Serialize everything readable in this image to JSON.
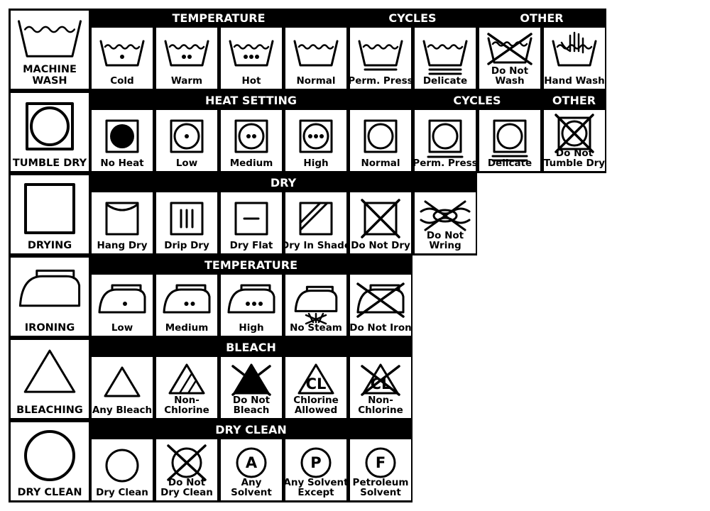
{
  "rows": [
    {
      "category": [
        "MACHINE",
        "WASH"
      ],
      "category_icon": "washtub-icon",
      "headers": [
        {
          "text": "TEMPERATURE",
          "from": 0,
          "to": 3
        },
        {
          "text": "CYCLES",
          "from": 4,
          "to": 5
        },
        {
          "text": "OTHER",
          "from": 6,
          "to": 7
        }
      ],
      "cells": [
        {
          "label": [
            "Cold"
          ],
          "icon": "wash-cold-icon"
        },
        {
          "label": [
            "Warm"
          ],
          "icon": "wash-warm-icon"
        },
        {
          "label": [
            "Hot"
          ],
          "icon": "wash-hot-icon"
        },
        {
          "label": [
            "Normal"
          ],
          "icon": "wash-normal-icon"
        },
        {
          "label": [
            "Perm. Press"
          ],
          "icon": "wash-perm-press-icon"
        },
        {
          "label": [
            "Delicate"
          ],
          "icon": "wash-delicate-icon"
        },
        {
          "label": [
            "Do Not",
            "Wash"
          ],
          "icon": "do-not-wash-icon"
        },
        {
          "label": [
            "Hand Wash"
          ],
          "icon": "hand-wash-icon"
        }
      ]
    },
    {
      "category": [
        "TUMBLE DRY"
      ],
      "category_icon": "tumble-dry-icon",
      "headers": [
        {
          "text": "HEAT SETTING",
          "from": 0,
          "to": 4
        },
        {
          "text": "CYCLES",
          "from": 5,
          "to": 6
        },
        {
          "text": "OTHER",
          "from": 7,
          "to": 7
        }
      ],
      "cells": [
        {
          "label": [
            "No Heat"
          ],
          "icon": "tumble-no-heat-icon"
        },
        {
          "label": [
            "Low"
          ],
          "icon": "tumble-low-icon"
        },
        {
          "label": [
            "Medium"
          ],
          "icon": "tumble-medium-icon"
        },
        {
          "label": [
            "High"
          ],
          "icon": "tumble-high-icon"
        },
        {
          "label": [
            "Normal"
          ],
          "icon": "tumble-normal-icon"
        },
        {
          "label": [
            "Perm. Press"
          ],
          "icon": "tumble-perm-press-icon"
        },
        {
          "label": [
            "Delicate"
          ],
          "icon": "tumble-delicate-icon"
        },
        {
          "label": [
            "Do Not",
            "Tumble Dry"
          ],
          "icon": "do-not-tumble-dry-icon"
        }
      ]
    },
    {
      "category": [
        "DRYING"
      ],
      "category_icon": "drying-square-icon",
      "headers": [
        {
          "text": "DRY",
          "from": 0,
          "to": 5
        }
      ],
      "cells": [
        {
          "label": [
            "Hang Dry"
          ],
          "icon": "hang-dry-icon"
        },
        {
          "label": [
            "Drip Dry"
          ],
          "icon": "drip-dry-icon"
        },
        {
          "label": [
            "Dry Flat"
          ],
          "icon": "dry-flat-icon"
        },
        {
          "label": [
            "Dry In Shade"
          ],
          "icon": "dry-in-shade-icon"
        },
        {
          "label": [
            "Do Not Dry"
          ],
          "icon": "do-not-dry-icon"
        },
        {
          "label": [
            "Do Not",
            "Wring"
          ],
          "icon": "do-not-wring-icon"
        }
      ]
    },
    {
      "category": [
        "IRONING"
      ],
      "category_icon": "iron-icon",
      "headers": [
        {
          "text": "TEMPERATURE",
          "from": 0,
          "to": 4
        }
      ],
      "cells": [
        {
          "label": [
            "Low"
          ],
          "icon": "iron-low-icon"
        },
        {
          "label": [
            "Medium"
          ],
          "icon": "iron-medium-icon"
        },
        {
          "label": [
            "High"
          ],
          "icon": "iron-high-icon"
        },
        {
          "label": [
            "No Steam"
          ],
          "icon": "iron-no-steam-icon"
        },
        {
          "label": [
            "Do Not Iron"
          ],
          "icon": "do-not-iron-icon"
        }
      ]
    },
    {
      "category": [
        "BLEACHING"
      ],
      "category_icon": "bleach-triangle-icon",
      "headers": [
        {
          "text": "BLEACH",
          "from": 0,
          "to": 4
        }
      ],
      "cells": [
        {
          "label": [
            "Any Bleach"
          ],
          "icon": "any-bleach-icon"
        },
        {
          "label": [
            "Non-",
            "Chlorine"
          ],
          "icon": "non-chlorine-bleach-icon"
        },
        {
          "label": [
            "Do Not",
            "Bleach"
          ],
          "icon": "do-not-bleach-icon"
        },
        {
          "label": [
            "Chlorine",
            "Allowed"
          ],
          "icon": "chlorine-allowed-icon",
          "glyph": "CL"
        },
        {
          "label": [
            "Non-",
            "Chlorine"
          ],
          "icon": "no-chlorine-icon",
          "glyph": "CL"
        }
      ]
    },
    {
      "category": [
        "DRY CLEAN"
      ],
      "category_icon": "dry-clean-circle-icon",
      "headers": [
        {
          "text": "DRY CLEAN",
          "from": 0,
          "to": 4
        }
      ],
      "cells": [
        {
          "label": [
            "Dry Clean"
          ],
          "icon": "dry-clean-icon"
        },
        {
          "label": [
            "Do Not",
            "Dry Clean"
          ],
          "icon": "do-not-dry-clean-icon"
        },
        {
          "label": [
            "Any",
            "Solvent"
          ],
          "icon": "any-solvent-icon",
          "glyph": "A"
        },
        {
          "label": [
            "Any Solvent",
            "Except"
          ],
          "icon": "solvent-except-icon",
          "glyph": "P"
        },
        {
          "label": [
            "Petroleum",
            "Solvent"
          ],
          "icon": "petroleum-solvent-icon",
          "glyph": "F"
        }
      ]
    }
  ]
}
